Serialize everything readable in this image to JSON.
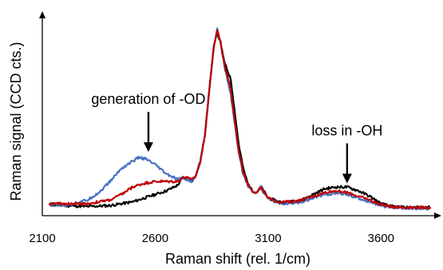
{
  "chart_data": {
    "type": "line",
    "xlabel": "Raman shift (rel. 1/cm)",
    "ylabel": "Raman signal (CCD cts.)",
    "xlim": [
      2100,
      3850
    ],
    "ylim": [
      0,
      100
    ],
    "x_ticks": [
      2100,
      2600,
      3100,
      3600
    ],
    "x_tick_labels": [
      "2100",
      "2600",
      "3100",
      "3600"
    ],
    "y_ticks_visible": false,
    "grid": false,
    "legend": false,
    "series": [
      {
        "color": "#000000",
        "points": [
          [
            2130,
            2.5
          ],
          [
            2200,
            2
          ],
          [
            2300,
            1.5
          ],
          [
            2400,
            2
          ],
          [
            2450,
            3
          ],
          [
            2500,
            4
          ],
          [
            2550,
            6
          ],
          [
            2600,
            8
          ],
          [
            2650,
            10
          ],
          [
            2700,
            13
          ],
          [
            2720,
            17
          ],
          [
            2740,
            17
          ],
          [
            2760,
            15
          ],
          [
            2780,
            18
          ],
          [
            2800,
            26
          ],
          [
            2820,
            40
          ],
          [
            2840,
            65
          ],
          [
            2860,
            88
          ],
          [
            2875,
            95
          ],
          [
            2890,
            90
          ],
          [
            2900,
            83
          ],
          [
            2910,
            78
          ],
          [
            2920,
            75
          ],
          [
            2935,
            70
          ],
          [
            2950,
            55
          ],
          [
            2970,
            35
          ],
          [
            2990,
            22
          ],
          [
            3010,
            14
          ],
          [
            3030,
            10
          ],
          [
            3050,
            9
          ],
          [
            3060,
            11
          ],
          [
            3070,
            12
          ],
          [
            3080,
            10
          ],
          [
            3100,
            6
          ],
          [
            3150,
            4
          ],
          [
            3200,
            4
          ],
          [
            3250,
            5
          ],
          [
            3300,
            8
          ],
          [
            3350,
            11
          ],
          [
            3400,
            12
          ],
          [
            3450,
            12
          ],
          [
            3500,
            10
          ],
          [
            3550,
            7
          ],
          [
            3600,
            3
          ],
          [
            3650,
            1.5
          ],
          [
            3700,
            1
          ],
          [
            3820,
            1
          ]
        ]
      },
      {
        "color": "#4472C4",
        "points": [
          [
            2130,
            2.5
          ],
          [
            2200,
            2
          ],
          [
            2300,
            5
          ],
          [
            2350,
            9
          ],
          [
            2400,
            15
          ],
          [
            2450,
            22
          ],
          [
            2500,
            26
          ],
          [
            2530,
            28
          ],
          [
            2560,
            27
          ],
          [
            2600,
            24
          ],
          [
            2650,
            19
          ],
          [
            2700,
            16
          ],
          [
            2720,
            17
          ],
          [
            2740,
            16
          ],
          [
            2760,
            15
          ],
          [
            2780,
            18
          ],
          [
            2800,
            26
          ],
          [
            2820,
            40
          ],
          [
            2840,
            65
          ],
          [
            2860,
            88
          ],
          [
            2875,
            97
          ],
          [
            2890,
            90
          ],
          [
            2900,
            82
          ],
          [
            2910,
            75
          ],
          [
            2920,
            70
          ],
          [
            2935,
            62
          ],
          [
            2950,
            48
          ],
          [
            2970,
            30
          ],
          [
            2990,
            19
          ],
          [
            3010,
            13
          ],
          [
            3030,
            10
          ],
          [
            3050,
            9
          ],
          [
            3060,
            11
          ],
          [
            3070,
            12
          ],
          [
            3080,
            9
          ],
          [
            3100,
            6
          ],
          [
            3150,
            3
          ],
          [
            3200,
            3
          ],
          [
            3250,
            4
          ],
          [
            3300,
            6
          ],
          [
            3350,
            8
          ],
          [
            3400,
            8.5
          ],
          [
            3450,
            8
          ],
          [
            3500,
            6
          ],
          [
            3550,
            4
          ],
          [
            3600,
            2
          ],
          [
            3650,
            1
          ],
          [
            3700,
            0.5
          ],
          [
            3820,
            0.5
          ]
        ]
      },
      {
        "color": "#C00000",
        "points": [
          [
            2130,
            3
          ],
          [
            2200,
            3
          ],
          [
            2300,
            3
          ],
          [
            2400,
            5
          ],
          [
            2450,
            8
          ],
          [
            2500,
            12
          ],
          [
            2550,
            14
          ],
          [
            2600,
            15
          ],
          [
            2650,
            15
          ],
          [
            2700,
            15
          ],
          [
            2720,
            17
          ],
          [
            2740,
            17
          ],
          [
            2760,
            16
          ],
          [
            2780,
            18
          ],
          [
            2800,
            26
          ],
          [
            2820,
            40
          ],
          [
            2840,
            65
          ],
          [
            2860,
            88
          ],
          [
            2875,
            97
          ],
          [
            2890,
            90
          ],
          [
            2900,
            82
          ],
          [
            2910,
            76
          ],
          [
            2920,
            72
          ],
          [
            2935,
            65
          ],
          [
            2950,
            50
          ],
          [
            2970,
            31
          ],
          [
            2990,
            20
          ],
          [
            3010,
            13
          ],
          [
            3030,
            10
          ],
          [
            3050,
            9
          ],
          [
            3060,
            11
          ],
          [
            3070,
            12
          ],
          [
            3080,
            9
          ],
          [
            3100,
            6
          ],
          [
            3150,
            4
          ],
          [
            3200,
            4
          ],
          [
            3250,
            5
          ],
          [
            3300,
            7
          ],
          [
            3350,
            9
          ],
          [
            3400,
            10
          ],
          [
            3450,
            9
          ],
          [
            3500,
            7
          ],
          [
            3550,
            5
          ],
          [
            3600,
            2.5
          ],
          [
            3650,
            1.5
          ],
          [
            3700,
            1
          ],
          [
            3820,
            1
          ]
        ]
      }
    ],
    "annotations": [
      {
        "text": "generation of -OD",
        "arrow_tip": [
          2570,
          31
        ]
      },
      {
        "text": "loss in -OH",
        "arrow_tip": [
          3450,
          14
        ]
      }
    ]
  }
}
